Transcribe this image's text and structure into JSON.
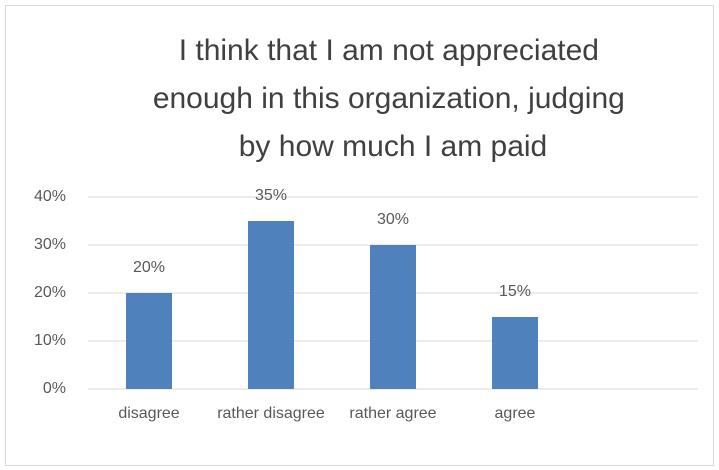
{
  "chart_data": {
    "type": "bar",
    "title": "I think that I am not appreciated enough in this organization, judging by how much I am paid",
    "categories": [
      "disagree",
      "rather disagree",
      "rather agree",
      "agree",
      null
    ],
    "values": [
      20,
      35,
      30,
      15,
      null
    ],
    "value_labels": [
      "20%",
      "35%",
      "30%",
      "15%",
      null
    ],
    "color": "#4f81bd",
    "ylim": [
      0,
      40
    ],
    "yticks": [
      {
        "value": 0,
        "label": "0%"
      },
      {
        "value": 10,
        "label": "10%"
      },
      {
        "value": 20,
        "label": "20%"
      },
      {
        "value": 30,
        "label": "30%"
      },
      {
        "value": 40,
        "label": "40%"
      }
    ],
    "grid": true
  }
}
